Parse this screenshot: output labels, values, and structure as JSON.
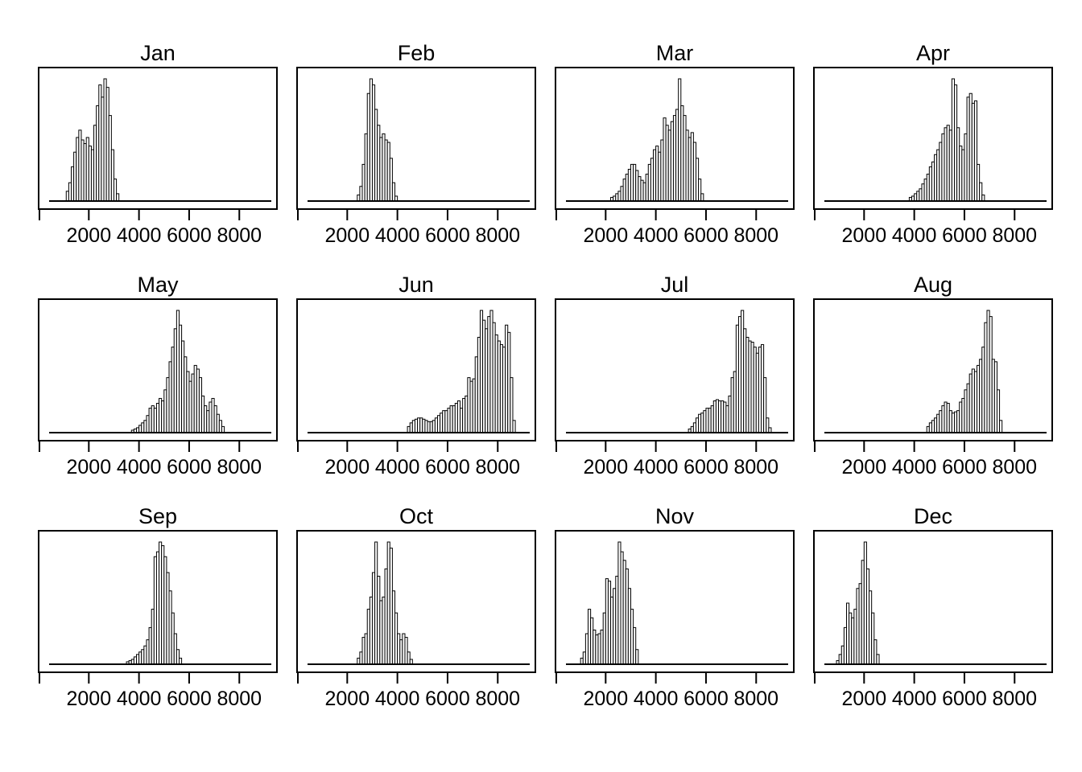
{
  "figure": {
    "background": "#ffffff",
    "description": "Grid of 12 monthly histograms sharing a common x axis scale"
  },
  "chart_data": {
    "type": "bar",
    "subtype": "histogram-small-multiples",
    "title": "",
    "xlabel": "",
    "ylabel": "",
    "layout": {
      "rows": 3,
      "cols": 4,
      "grid_on": false,
      "legend": "none"
    },
    "x_axis": {
      "xlim": [
        0,
        9500
      ],
      "ticks": [
        0,
        2000,
        4000,
        6000,
        8000
      ],
      "tick_labels": [
        "",
        "2000",
        "4000",
        "6000",
        "8000"
      ]
    },
    "y_axis": {
      "units": "percent-of-panel-max",
      "note": "heights are relative frequencies, each panel scaled to its own maximum"
    },
    "style": {
      "bar_fill": "#ffffff",
      "bar_stroke": "#000000",
      "axis_color": "#000000",
      "text_color": "#000000",
      "background": "#ffffff"
    },
    "bin_width": 100,
    "panels": [
      {
        "title": "Jan",
        "bin_start": 1100,
        "heights": [
          8,
          15,
          28,
          40,
          52,
          58,
          50,
          47,
          52,
          45,
          42,
          62,
          78,
          95,
          85,
          100,
          93,
          70,
          42,
          18,
          6
        ]
      },
      {
        "title": "Feb",
        "bin_start": 2400,
        "heights": [
          5,
          12,
          30,
          55,
          88,
          100,
          95,
          75,
          62,
          52,
          55,
          50,
          48,
          35,
          15,
          4
        ]
      },
      {
        "title": "Mar",
        "bin_start": 2200,
        "heights": [
          3,
          4,
          6,
          8,
          12,
          18,
          22,
          26,
          30,
          30,
          25,
          20,
          17,
          15,
          22,
          30,
          35,
          42,
          45,
          40,
          50,
          68,
          62,
          58,
          65,
          70,
          75,
          100,
          78,
          70,
          58,
          52,
          56,
          48,
          35,
          18,
          6
        ]
      },
      {
        "title": "Apr",
        "bin_start": 3800,
        "heights": [
          3,
          4,
          6,
          8,
          10,
          14,
          18,
          22,
          28,
          32,
          38,
          42,
          48,
          55,
          60,
          62,
          58,
          100,
          95,
          60,
          45,
          42,
          55,
          85,
          88,
          80,
          82,
          30,
          15,
          5
        ]
      },
      {
        "title": "May",
        "bin_start": 3700,
        "heights": [
          2,
          3,
          4,
          6,
          8,
          10,
          14,
          20,
          22,
          20,
          24,
          28,
          26,
          35,
          45,
          58,
          70,
          85,
          100,
          88,
          75,
          62,
          50,
          42,
          48,
          55,
          52,
          45,
          30,
          22,
          18,
          25,
          28,
          22,
          15,
          10,
          5
        ]
      },
      {
        "title": "Jun",
        "bin_start": 4400,
        "heights": [
          5,
          8,
          10,
          11,
          12,
          12,
          11,
          10,
          9,
          9,
          10,
          12,
          14,
          16,
          18,
          18,
          20,
          22,
          22,
          24,
          26,
          20,
          28,
          30,
          45,
          42,
          44,
          62,
          78,
          100,
          92,
          85,
          95,
          100,
          90,
          80,
          75,
          72,
          70,
          88,
          82,
          45,
          10
        ]
      },
      {
        "title": "Jul",
        "bin_start": 5300,
        "heights": [
          3,
          5,
          8,
          12,
          15,
          16,
          18,
          20,
          20,
          22,
          26,
          27,
          26,
          26,
          25,
          22,
          30,
          45,
          50,
          88,
          95,
          100,
          85,
          78,
          75,
          74,
          70,
          65,
          70,
          72,
          45,
          12,
          4
        ]
      },
      {
        "title": "Aug",
        "bin_start": 4500,
        "heights": [
          5,
          8,
          10,
          12,
          15,
          18,
          22,
          25,
          24,
          18,
          16,
          17,
          18,
          25,
          28,
          35,
          40,
          48,
          52,
          50,
          55,
          60,
          70,
          90,
          100,
          95,
          60,
          58,
          35,
          10
        ]
      },
      {
        "title": "Sep",
        "bin_start": 3500,
        "heights": [
          2,
          3,
          4,
          6,
          8,
          10,
          12,
          15,
          20,
          30,
          45,
          88,
          92,
          100,
          97,
          88,
          75,
          60,
          42,
          25,
          12,
          5
        ]
      },
      {
        "title": "Oct",
        "bin_start": 2400,
        "heights": [
          5,
          10,
          22,
          25,
          45,
          55,
          75,
          100,
          72,
          52,
          55,
          78,
          100,
          95,
          60,
          42,
          25,
          20,
          25,
          22,
          10,
          4
        ]
      },
      {
        "title": "Nov",
        "bin_start": 1000,
        "heights": [
          5,
          10,
          25,
          45,
          38,
          28,
          24,
          25,
          28,
          42,
          70,
          68,
          55,
          62,
          72,
          100,
          92,
          85,
          78,
          62,
          45,
          30,
          12
        ]
      },
      {
        "title": "Dec",
        "bin_start": 900,
        "heights": [
          3,
          8,
          15,
          30,
          50,
          42,
          38,
          45,
          62,
          66,
          85,
          100,
          78,
          60,
          42,
          20,
          8
        ]
      }
    ]
  }
}
